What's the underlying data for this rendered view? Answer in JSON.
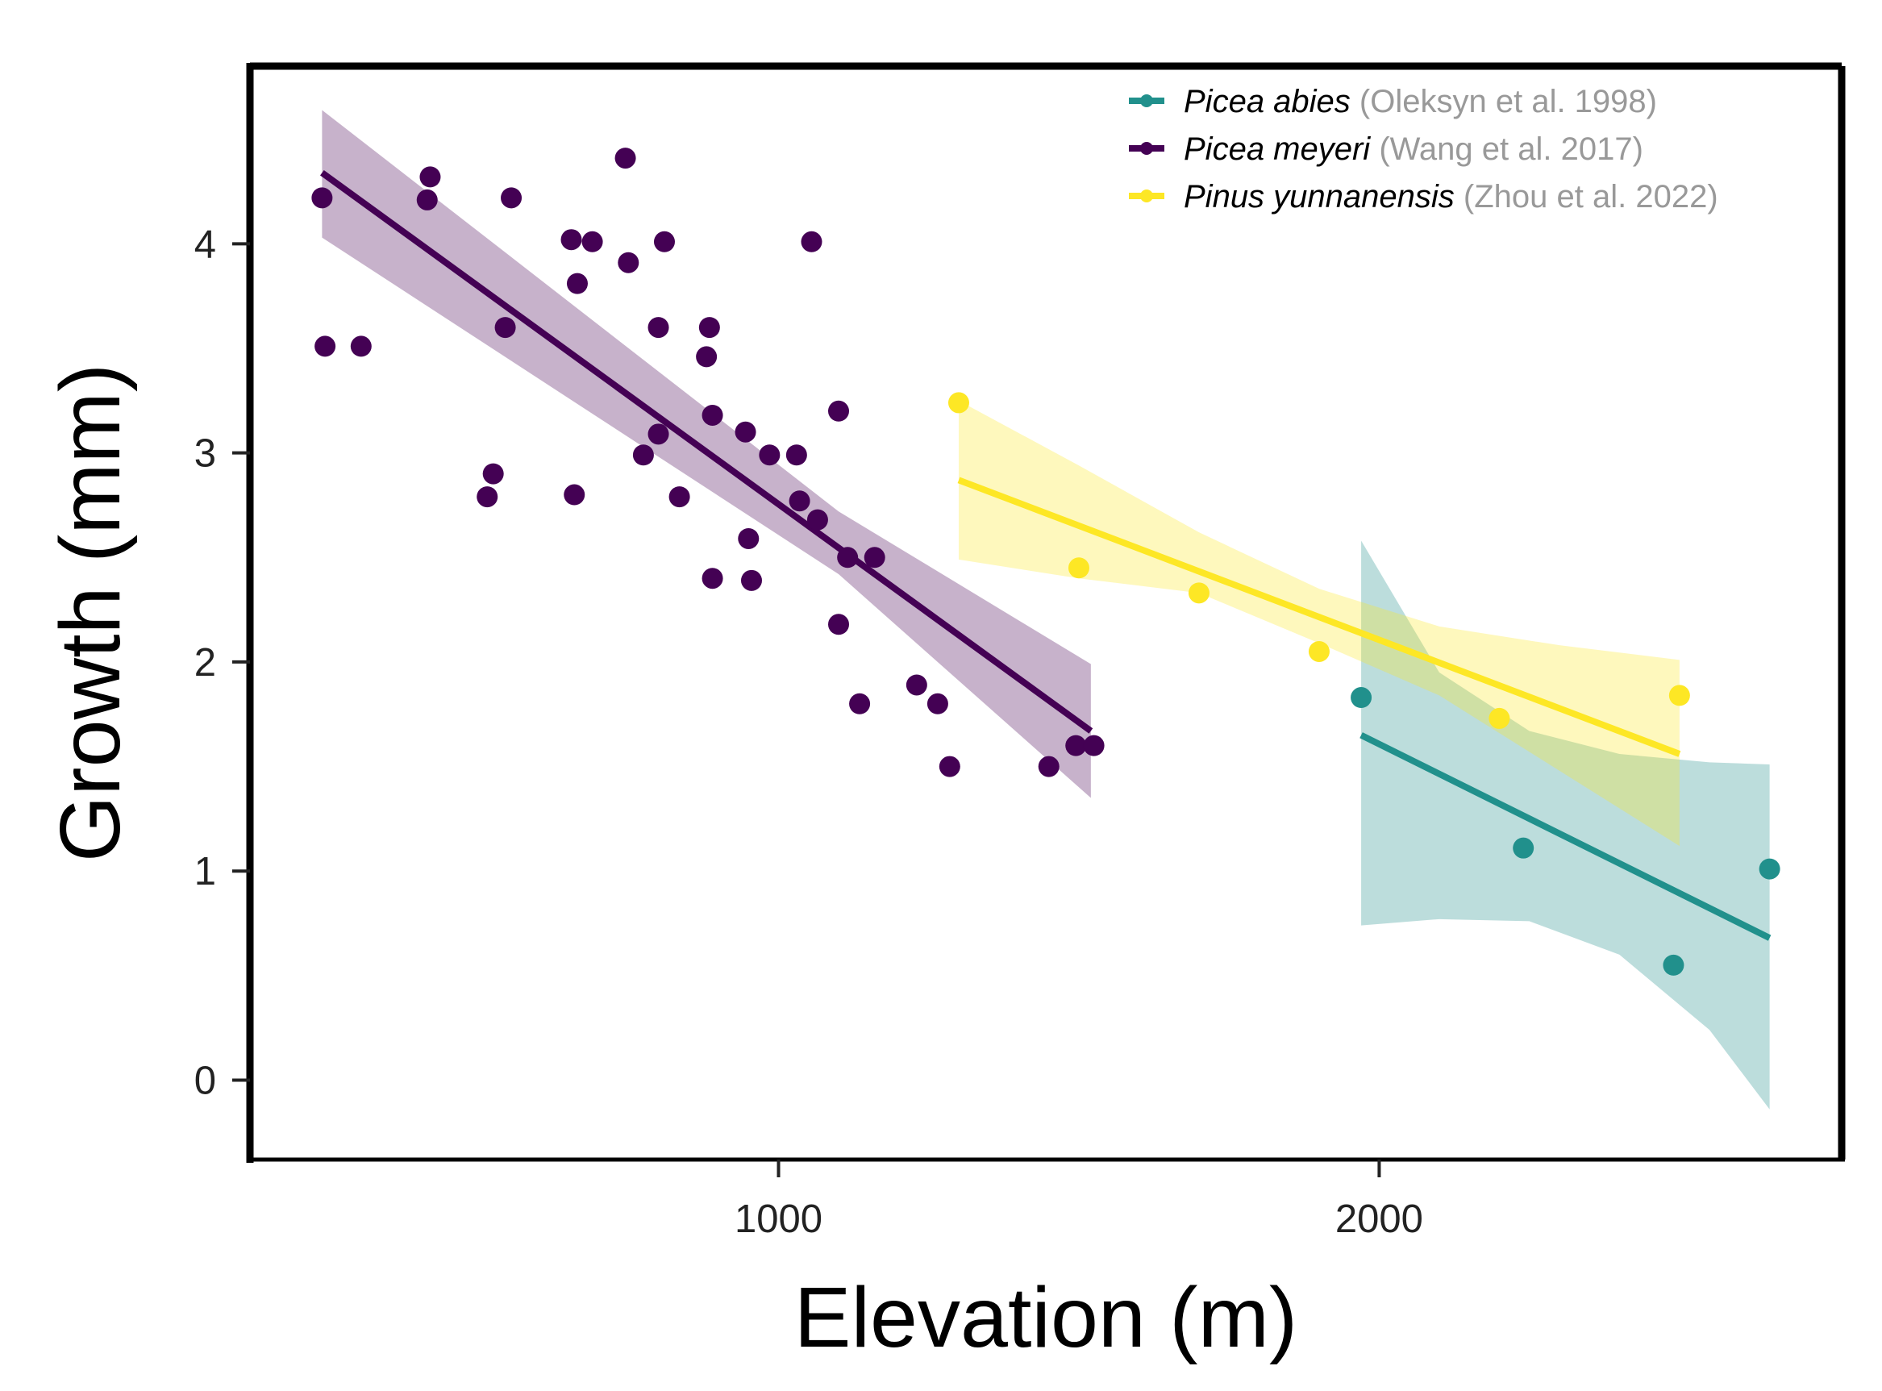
{
  "chart_data": {
    "type": "scatter",
    "title": "",
    "xlabel": "Elevation (m)",
    "ylabel": "Growth (mm)",
    "xlim": [
      120,
      2770
    ],
    "ylim": [
      -0.38,
      4.85
    ],
    "xticks": [
      1000,
      2000
    ],
    "yticks": [
      0,
      1,
      2,
      3,
      4
    ],
    "grid": false,
    "legend_position": "top-right",
    "series": [
      {
        "name": "Picea abies",
        "source": "(Oleksyn et al. 1998)",
        "color": "#21908C",
        "points": [
          [
            1970,
            1.83
          ],
          [
            2240,
            1.11
          ],
          [
            2490,
            0.55
          ],
          [
            2650,
            1.01
          ]
        ],
        "fit": [
          [
            1970,
            1.65
          ],
          [
            2650,
            0.68
          ]
        ],
        "band": [
          [
            1970,
            2.58,
            0.74
          ],
          [
            2100,
            1.95,
            0.77
          ],
          [
            2250,
            1.67,
            0.76
          ],
          [
            2400,
            1.56,
            0.6
          ],
          [
            2550,
            1.52,
            0.24
          ],
          [
            2650,
            1.51,
            -0.14
          ]
        ]
      },
      {
        "name": "Picea meyeri",
        "source": "(Wang et al. 2017)",
        "color": "#440154",
        "points": [
          [
            240,
            4.22
          ],
          [
            245,
            3.51
          ],
          [
            305,
            3.51
          ],
          [
            415,
            4.21
          ],
          [
            420,
            4.32
          ],
          [
            515,
            2.79
          ],
          [
            525,
            2.9
          ],
          [
            545,
            3.6
          ],
          [
            555,
            4.22
          ],
          [
            655,
            4.02
          ],
          [
            660,
            2.8
          ],
          [
            665,
            3.81
          ],
          [
            690,
            4.01
          ],
          [
            745,
            4.41
          ],
          [
            750,
            3.91
          ],
          [
            775,
            2.99
          ],
          [
            800,
            3.09
          ],
          [
            800,
            3.6
          ],
          [
            810,
            4.01
          ],
          [
            835,
            2.79
          ],
          [
            880,
            3.46
          ],
          [
            885,
            3.6
          ],
          [
            890,
            3.18
          ],
          [
            890,
            2.4
          ],
          [
            945,
            3.1
          ],
          [
            950,
            2.59
          ],
          [
            955,
            2.39
          ],
          [
            985,
            2.99
          ],
          [
            1030,
            2.99
          ],
          [
            1035,
            2.77
          ],
          [
            1055,
            4.01
          ],
          [
            1065,
            2.68
          ],
          [
            1100,
            3.2
          ],
          [
            1100,
            2.18
          ],
          [
            1115,
            2.5
          ],
          [
            1135,
            1.8
          ],
          [
            1160,
            2.5
          ],
          [
            1230,
            1.89
          ],
          [
            1265,
            1.8
          ],
          [
            1285,
            1.5
          ],
          [
            1450,
            1.5
          ],
          [
            1495,
            1.6
          ],
          [
            1525,
            1.6
          ]
        ],
        "fit": [
          [
            240,
            4.34
          ],
          [
            1520,
            1.67
          ]
        ],
        "band": [
          [
            240,
            4.64,
            4.03
          ],
          [
            1100,
            2.72,
            2.42
          ],
          [
            1520,
            1.99,
            1.35
          ]
        ]
      },
      {
        "name": "Pinus yunnanensis",
        "source": "(Zhou et al. 2022)",
        "color": "#FDE725",
        "points": [
          [
            1300,
            3.24
          ],
          [
            1500,
            2.45
          ],
          [
            1700,
            2.33
          ],
          [
            1900,
            2.05
          ],
          [
            2200,
            1.73
          ],
          [
            2500,
            1.84
          ]
        ],
        "fit": [
          [
            1300,
            2.87
          ],
          [
            2500,
            1.56
          ]
        ],
        "band": [
          [
            1300,
            3.25,
            2.49
          ],
          [
            1500,
            2.94,
            2.4
          ],
          [
            1700,
            2.62,
            2.33
          ],
          [
            1900,
            2.35,
            2.09
          ],
          [
            2100,
            2.17,
            1.84
          ],
          [
            2300,
            2.08,
            1.48
          ],
          [
            2500,
            2.01,
            1.12
          ]
        ]
      }
    ]
  }
}
